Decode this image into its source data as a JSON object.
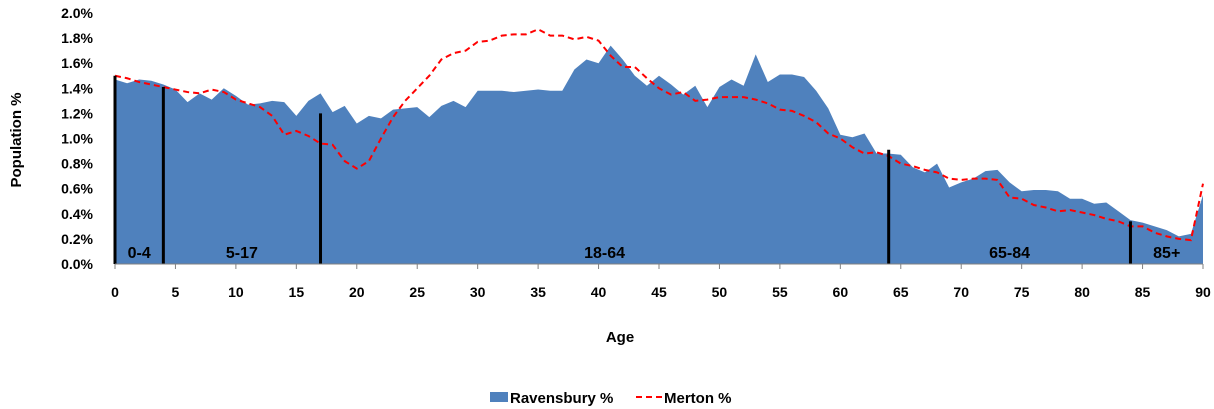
{
  "chart_data": {
    "type": "area",
    "xlabel": "Age",
    "ylabel": "Population %",
    "xlim": [
      0,
      90
    ],
    "ylim": [
      0,
      0.02
    ],
    "x_ticks": [
      "0",
      "5",
      "10",
      "15",
      "20",
      "25",
      "30",
      "35",
      "40",
      "45",
      "50",
      "55",
      "60",
      "65",
      "70",
      "75",
      "80",
      "85",
      "90"
    ],
    "y_ticks": [
      "0.0%",
      "0.2%",
      "0.4%",
      "0.6%",
      "0.8%",
      "1.0%",
      "1.2%",
      "1.4%",
      "1.6%",
      "1.8%",
      "2.0%"
    ],
    "grid": false,
    "legend": "bottom-center",
    "x": [
      0,
      1,
      2,
      3,
      4,
      5,
      6,
      7,
      8,
      9,
      10,
      11,
      12,
      13,
      14,
      15,
      16,
      17,
      18,
      19,
      20,
      21,
      22,
      23,
      24,
      25,
      26,
      27,
      28,
      29,
      30,
      31,
      32,
      33,
      34,
      35,
      36,
      37,
      38,
      39,
      40,
      41,
      42,
      43,
      44,
      45,
      46,
      47,
      48,
      49,
      50,
      51,
      52,
      53,
      54,
      55,
      56,
      57,
      58,
      59,
      60,
      61,
      62,
      63,
      64,
      65,
      66,
      67,
      68,
      69,
      70,
      71,
      72,
      73,
      74,
      75,
      76,
      77,
      78,
      79,
      80,
      81,
      82,
      83,
      84,
      85,
      86,
      87,
      88,
      89,
      90
    ],
    "series": [
      {
        "name": "Ravensbury %",
        "style": "area",
        "color": "#4f81bd",
        "values": [
          0.0147,
          0.0144,
          0.0147,
          0.0146,
          0.0143,
          0.0139,
          0.0129,
          0.0136,
          0.0131,
          0.014,
          0.0134,
          0.0127,
          0.0128,
          0.013,
          0.0129,
          0.0118,
          0.013,
          0.0136,
          0.0121,
          0.0126,
          0.0112,
          0.0118,
          0.0116,
          0.0123,
          0.0124,
          0.0125,
          0.0117,
          0.0126,
          0.013,
          0.0125,
          0.0138,
          0.0138,
          0.0138,
          0.0137,
          0.0138,
          0.0139,
          0.0138,
          0.0138,
          0.0155,
          0.0163,
          0.016,
          0.0174,
          0.0163,
          0.015,
          0.0142,
          0.015,
          0.0143,
          0.0135,
          0.0142,
          0.0125,
          0.0141,
          0.0147,
          0.0142,
          0.0167,
          0.0145,
          0.0151,
          0.0151,
          0.0149,
          0.0138,
          0.0124,
          0.0103,
          0.0101,
          0.0104,
          0.0088,
          0.0088,
          0.0087,
          0.0077,
          0.0073,
          0.008,
          0.0061,
          0.0065,
          0.0068,
          0.0074,
          0.0075,
          0.0065,
          0.0058,
          0.0059,
          0.0059,
          0.0058,
          0.0052,
          0.0052,
          0.0048,
          0.0049,
          0.0042,
          0.0035,
          0.0033,
          0.003,
          0.0027,
          0.0022,
          0.0024,
          0.0055
        ]
      },
      {
        "name": "Merton %",
        "style": "dashed-line",
        "color": "#ff0000",
        "values": [
          0.015,
          0.0148,
          0.0145,
          0.0143,
          0.0141,
          0.0139,
          0.0137,
          0.0136,
          0.0139,
          0.0137,
          0.0131,
          0.0128,
          0.0125,
          0.0118,
          0.0103,
          0.0106,
          0.0102,
          0.0096,
          0.0095,
          0.0082,
          0.0076,
          0.0082,
          0.01,
          0.0117,
          0.013,
          0.014,
          0.015,
          0.0163,
          0.0168,
          0.017,
          0.0177,
          0.0178,
          0.0182,
          0.0183,
          0.0183,
          0.0187,
          0.0182,
          0.0182,
          0.0179,
          0.0181,
          0.0178,
          0.0166,
          0.0157,
          0.0157,
          0.0148,
          0.014,
          0.0135,
          0.0137,
          0.013,
          0.0131,
          0.0133,
          0.0133,
          0.0133,
          0.0131,
          0.0128,
          0.0123,
          0.0122,
          0.0118,
          0.0113,
          0.0104,
          0.01,
          0.0093,
          0.0088,
          0.0089,
          0.0086,
          0.008,
          0.0078,
          0.0075,
          0.0073,
          0.0068,
          0.0067,
          0.0068,
          0.0068,
          0.0067,
          0.0053,
          0.0052,
          0.0047,
          0.0045,
          0.0042,
          0.0043,
          0.0041,
          0.0039,
          0.0036,
          0.0034,
          0.003,
          0.003,
          0.0025,
          0.0022,
          0.002,
          0.0019,
          0.0064
        ]
      }
    ],
    "age_bands": [
      {
        "label": "0-4",
        "boundary_x": 0,
        "boundary_y": 0.015,
        "label_x": 2
      },
      {
        "label": "5-17",
        "boundary_x": 4,
        "boundary_y": 0.0141,
        "label_x": 10.5
      },
      {
        "label": "18-64",
        "boundary_x": 17,
        "boundary_y": 0.012,
        "label_x": 40.5
      },
      {
        "label": "65-84",
        "boundary_x": 64,
        "boundary_y": 0.0091,
        "label_x": 74
      },
      {
        "label": "85+",
        "boundary_x": 84,
        "boundary_y": 0.0034,
        "label_x": 87
      }
    ]
  }
}
